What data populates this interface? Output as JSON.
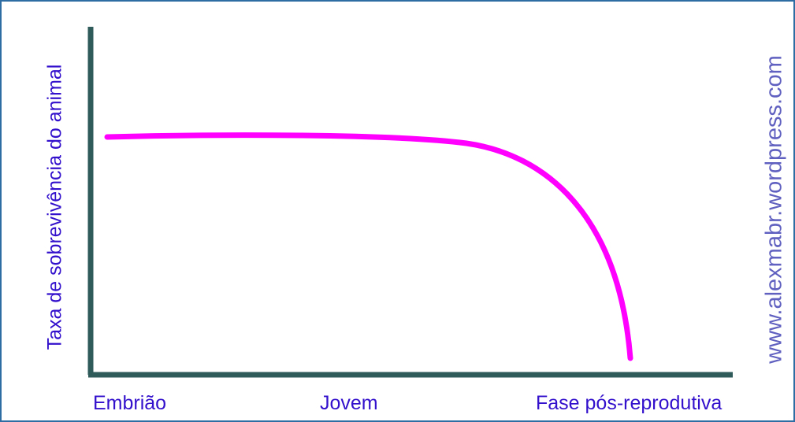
{
  "figure": {
    "ylabel": "Taxa de sobrevivência do animal",
    "xlabels": [
      "Embrião",
      "Jovem",
      "Fase pós-reprodutiva"
    ],
    "watermark": "www.alexmabr.wordpress.com"
  },
  "colors": {
    "frame": "#2e6da4",
    "axes": "#2f5b5b",
    "curve": "#ff00ff",
    "label_text": "#3311cc",
    "watermark_text": "#6060c0"
  }
}
